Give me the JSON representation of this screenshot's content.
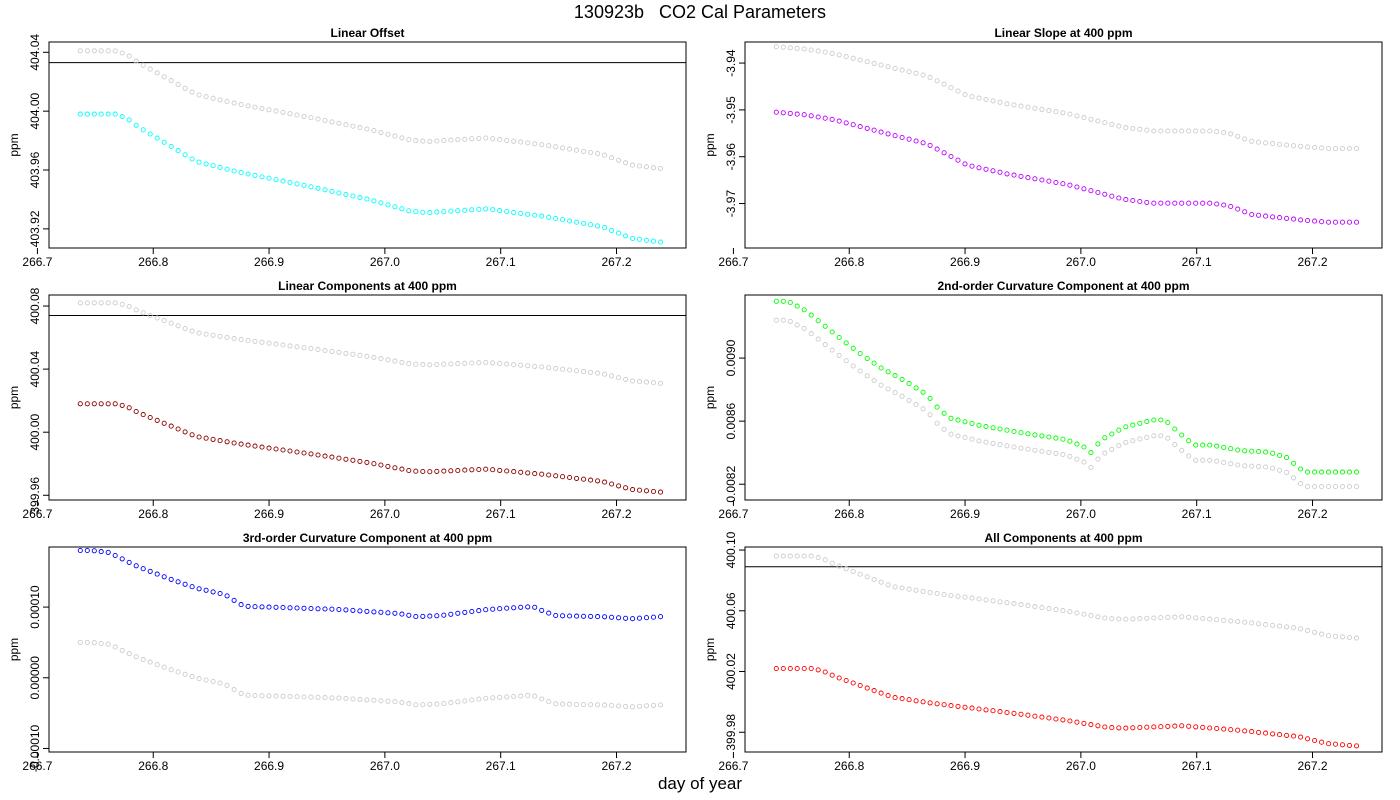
{
  "main_title": "130923b   CO2 Cal Parameters",
  "x_label": "day of year",
  "chart_data": [
    {
      "type": "scatter",
      "title": "Linear Offset",
      "ylabel": "ppm",
      "xlim": [
        266.71,
        267.26
      ],
      "ylim": [
        403.907,
        404.047
      ],
      "x_ticks": [
        266.7,
        266.8,
        266.9,
        267.0,
        267.1,
        267.2
      ],
      "x_tick_labels": [
        "266.7",
        "266.8",
        "266.9",
        "267.0",
        "267.1",
        "267.2"
      ],
      "y_ticks": [
        403.92,
        403.96,
        404.0,
        404.04
      ],
      "y_tick_labels": [
        "403.92",
        "403.96",
        "404.00",
        "404.04"
      ],
      "hline": 404.033,
      "series": [
        {
          "color": "#00ffff",
          "y_start": 403.998,
          "y_end": 403.911
        },
        {
          "color": "#cccccc",
          "y_start": 404.041,
          "y_end": 403.961
        }
      ]
    },
    {
      "type": "scatter",
      "title": "Linear Slope at 400 ppm",
      "ylabel": "ppm",
      "xlim": [
        266.71,
        267.26
      ],
      "ylim": [
        -3.9795,
        -3.9355
      ],
      "x_ticks": [
        266.7,
        266.8,
        266.9,
        267.0,
        267.1,
        267.2
      ],
      "x_tick_labels": [
        "266.7",
        "266.8",
        "266.9",
        "267.0",
        "267.1",
        "267.2"
      ],
      "y_ticks": [
        -3.97,
        -3.96,
        -3.95,
        -3.94
      ],
      "y_tick_labels": [
        "-3.97",
        "-3.96",
        "-3.95",
        "-3.94"
      ],
      "hline": null,
      "series": [
        {
          "color": "#bb00ff",
          "y_start": -3.9775,
          "y_end": -3.9505
        },
        {
          "color": "#cccccc",
          "y_start": -3.9615,
          "y_end": -3.9365
        }
      ]
    },
    {
      "type": "scatter",
      "title": "Linear Components at 400 ppm",
      "ylabel": "ppm",
      "xlim": [
        266.71,
        267.26
      ],
      "ylim": [
        399.957,
        400.087
      ],
      "x_ticks": [
        266.7,
        266.8,
        266.9,
        267.0,
        267.1,
        267.2
      ],
      "x_tick_labels": [
        "266.7",
        "266.8",
        "266.9",
        "267.0",
        "267.1",
        "267.2"
      ],
      "y_ticks": [
        399.96,
        400.0,
        400.04,
        400.08
      ],
      "y_tick_labels": [
        "399.96",
        "400.00",
        "400.04",
        "400.08"
      ],
      "hline": 400.074,
      "series": [
        {
          "color": "#8b0000",
          "y_start": 400.018,
          "y_end": 399.962
        },
        {
          "color": "#cccccc",
          "y_start": 400.082,
          "y_end": 400.031
        }
      ]
    },
    {
      "type": "scatter",
      "title": "2nd-order Curvature Component at 400 ppm",
      "ylabel": "ppm",
      "xlim": [
        266.71,
        267.26
      ],
      "ylim": [
        0.0081,
        0.0094
      ],
      "x_ticks": [
        266.7,
        266.8,
        266.9,
        267.0,
        267.1,
        267.2
      ],
      "x_tick_labels": [
        "266.7",
        "266.8",
        "266.9",
        "267.0",
        "267.1",
        "267.2"
      ],
      "y_ticks": [
        0.0082,
        0.0086,
        0.009
      ],
      "y_tick_labels": [
        "0.0082",
        "0.0086",
        "0.0090"
      ],
      "hline": null,
      "series": [
        {
          "color": "#00ff00",
          "y_start": 0.00822,
          "y_end": 0.00936
        },
        {
          "color": "#cccccc",
          "y_start": 0.00813,
          "y_end": 0.00924
        }
      ]
    },
    {
      "type": "scatter",
      "title": "3rd-order Curvature Component at 400 ppm",
      "ylabel": "ppm",
      "xlim": [
        266.71,
        267.26
      ],
      "ylim": [
        -0.000105,
        0.000185
      ],
      "x_ticks": [
        266.7,
        266.8,
        266.9,
        267.0,
        267.1,
        267.2
      ],
      "x_tick_labels": [
        "266.7",
        "266.8",
        "266.9",
        "267.0",
        "267.1",
        "267.2"
      ],
      "y_ticks": [
        -0.0001,
        0.0,
        0.0001
      ],
      "y_tick_labels": [
        "-0.00010",
        "0.00000",
        "0.00010"
      ],
      "hline": null,
      "series": [
        {
          "color": "#0000ff",
          "y_start": 0.00018,
          "y_end": 3.6e-05
        },
        {
          "color": "#cccccc",
          "y_start": 5e-05,
          "y_end": -8.6e-05
        }
      ]
    },
    {
      "type": "scatter",
      "title": "All Components at 400 ppm",
      "ylabel": "ppm",
      "xlim": [
        266.71,
        267.26
      ],
      "ylim": [
        399.967,
        400.102
      ],
      "x_ticks": [
        266.7,
        266.8,
        266.9,
        267.0,
        267.1,
        267.2
      ],
      "x_tick_labels": [
        "266.7",
        "266.8",
        "266.9",
        "267.0",
        "267.1",
        "267.2"
      ],
      "y_ticks": [
        399.98,
        400.02,
        400.06,
        400.1
      ],
      "y_tick_labels": [
        "399.98",
        "400.02",
        "400.06",
        "400.10"
      ],
      "hline": 400.089,
      "series": [
        {
          "color": "#ff0000",
          "y_start": 400.022,
          "y_end": 399.971
        },
        {
          "color": "#cccccc",
          "y_start": 400.096,
          "y_end": 400.042
        }
      ]
    }
  ]
}
